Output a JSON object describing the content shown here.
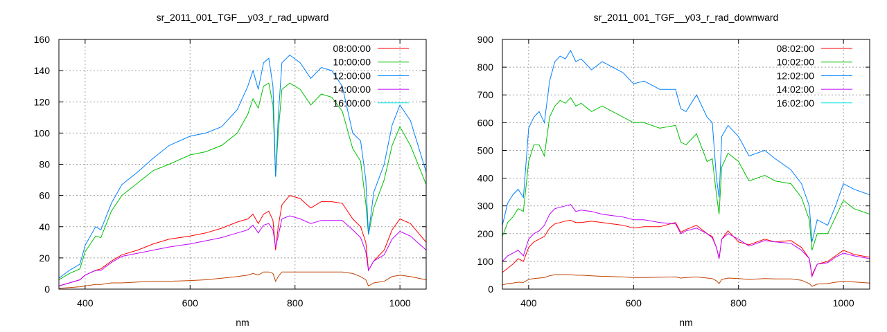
{
  "chart_data": [
    {
      "type": "line",
      "title": "sr_2011_001_TGF__y03_r_rad_upward",
      "xlabel": "nm",
      "ylabel": "",
      "xlim": [
        350,
        1050
      ],
      "ylim": [
        0,
        160
      ],
      "xticks": [
        400,
        600,
        800,
        1000
      ],
      "yticks": [
        0,
        20,
        40,
        60,
        80,
        100,
        120,
        140,
        160
      ],
      "grid": true,
      "legend": "top-right",
      "x": [
        350,
        370,
        390,
        400,
        420,
        430,
        450,
        470,
        500,
        530,
        560,
        600,
        630,
        660,
        690,
        710,
        720,
        730,
        740,
        750,
        758,
        763,
        768,
        775,
        790,
        810,
        830,
        850,
        870,
        890,
        910,
        925,
        935,
        940,
        950,
        970,
        985,
        1000,
        1020,
        1050
      ],
      "series": [
        {
          "name": "08:00:00",
          "color": "#ff0000",
          "legend_color": "#ff0000",
          "values": [
            2,
            4,
            6,
            9,
            12,
            13,
            18,
            22,
            25,
            29,
            32,
            34,
            36,
            39,
            43,
            45,
            48,
            42,
            48,
            50,
            44,
            25,
            40,
            54,
            60,
            58,
            52,
            56,
            56,
            55,
            45,
            40,
            30,
            12,
            18,
            25,
            38,
            45,
            42,
            30
          ]
        },
        {
          "name": "10:00:00",
          "color": "#00c000",
          "legend_color": "#00c000",
          "values": [
            6,
            10,
            13,
            24,
            34,
            33,
            50,
            60,
            68,
            76,
            80,
            86,
            88,
            92,
            100,
            112,
            122,
            116,
            130,
            132,
            118,
            72,
            100,
            128,
            132,
            128,
            118,
            125,
            123,
            114,
            90,
            82,
            55,
            35,
            52,
            70,
            92,
            104,
            92,
            67
          ]
        },
        {
          "name": "12:00:00",
          "color": "#0080ff",
          "legend_color": "#0080ff",
          "values": [
            7,
            12,
            16,
            28,
            40,
            38,
            55,
            67,
            75,
            84,
            92,
            98,
            100,
            104,
            115,
            130,
            140,
            128,
            145,
            148,
            130,
            72,
            110,
            145,
            150,
            145,
            135,
            142,
            140,
            130,
            100,
            95,
            70,
            35,
            62,
            80,
            105,
            118,
            108,
            75
          ]
        },
        {
          "name": "14:00:00",
          "color": "#c000ff",
          "legend_color": "#c000ff",
          "values": [
            2,
            4,
            6,
            9,
            12,
            12,
            17,
            21,
            23,
            25,
            27,
            29,
            31,
            33,
            36,
            38,
            41,
            36,
            41,
            42,
            38,
            27,
            34,
            45,
            47,
            45,
            42,
            44,
            44,
            44,
            38,
            33,
            24,
            12,
            18,
            22,
            32,
            37,
            34,
            25
          ]
        },
        {
          "name": "16:00:00",
          "color": "#c04000",
          "legend_color": "#00e0e0",
          "values": [
            0.5,
            1,
            1.5,
            2,
            3,
            3,
            4,
            4,
            4.5,
            5,
            5,
            5.5,
            6,
            7,
            8,
            9,
            10,
            9,
            11,
            11,
            10,
            5,
            8,
            11,
            11,
            11,
            11,
            11,
            11,
            11,
            10,
            8,
            6,
            2,
            4,
            5,
            8,
            9,
            8,
            6
          ]
        }
      ]
    },
    {
      "type": "line",
      "title": "sr_2011_001_TGF__y03_r_rad_downward",
      "xlabel": "nm",
      "ylabel": "",
      "xlim": [
        350,
        1050
      ],
      "ylim": [
        0,
        900
      ],
      "xticks": [
        400,
        600,
        800,
        1000
      ],
      "yticks": [
        0,
        100,
        200,
        300,
        400,
        500,
        600,
        700,
        800,
        900
      ],
      "grid": true,
      "legend": "top-right",
      "x": [
        350,
        360,
        370,
        380,
        390,
        400,
        410,
        420,
        430,
        440,
        450,
        460,
        470,
        480,
        490,
        500,
        520,
        540,
        560,
        580,
        600,
        620,
        650,
        680,
        690,
        700,
        720,
        740,
        750,
        758,
        763,
        768,
        780,
        800,
        820,
        850,
        870,
        900,
        920,
        935,
        940,
        950,
        970,
        985,
        1000,
        1020,
        1050
      ],
      "series": [
        {
          "name": "08:02:00",
          "color": "#ff0000",
          "legend_color": "#ff0000",
          "values": [
            60,
            75,
            90,
            110,
            100,
            150,
            170,
            180,
            190,
            220,
            235,
            240,
            245,
            248,
            240,
            240,
            245,
            240,
            235,
            230,
            220,
            225,
            225,
            240,
            205,
            215,
            230,
            200,
            190,
            150,
            110,
            180,
            210,
            170,
            160,
            180,
            170,
            175,
            150,
            110,
            50,
            90,
            100,
            120,
            140,
            125,
            115
          ]
        },
        {
          "name": "10:02:00",
          "color": "#00c000",
          "legend_color": "#00c000",
          "values": [
            190,
            240,
            260,
            290,
            280,
            460,
            520,
            520,
            480,
            620,
            660,
            680,
            670,
            690,
            660,
            670,
            640,
            660,
            640,
            620,
            600,
            600,
            580,
            590,
            530,
            520,
            560,
            460,
            470,
            340,
            270,
            440,
            490,
            460,
            390,
            410,
            390,
            380,
            330,
            250,
            140,
            200,
            200,
            260,
            320,
            290,
            270
          ]
        },
        {
          "name": "12:02:00",
          "color": "#0080ff",
          "legend_color": "#0080ff",
          "values": [
            230,
            310,
            340,
            360,
            330,
            580,
            620,
            640,
            600,
            750,
            820,
            840,
            830,
            860,
            820,
            830,
            790,
            820,
            800,
            780,
            740,
            750,
            720,
            720,
            650,
            640,
            700,
            620,
            600,
            400,
            330,
            550,
            590,
            550,
            480,
            500,
            470,
            430,
            380,
            300,
            170,
            250,
            230,
            300,
            380,
            360,
            340
          ]
        },
        {
          "name": "14:02:00",
          "color": "#c000ff",
          "legend_color": "#c000ff",
          "values": [
            100,
            120,
            130,
            140,
            120,
            180,
            200,
            210,
            230,
            270,
            290,
            295,
            300,
            305,
            280,
            285,
            280,
            270,
            265,
            260,
            250,
            250,
            240,
            235,
            200,
            210,
            220,
            200,
            185,
            150,
            110,
            180,
            200,
            180,
            155,
            175,
            170,
            165,
            140,
            110,
            45,
            90,
            95,
            115,
            130,
            120,
            110
          ]
        },
        {
          "name": "16:02:00",
          "color": "#c04000",
          "legend_color": "#00e0e0",
          "values": [
            15,
            20,
            22,
            25,
            24,
            35,
            38,
            40,
            42,
            48,
            52,
            52,
            52,
            52,
            50,
            50,
            48,
            46,
            45,
            44,
            42,
            42,
            43,
            44,
            40,
            42,
            44,
            40,
            38,
            30,
            20,
            35,
            40,
            38,
            35,
            38,
            37,
            37,
            32,
            20,
            10,
            18,
            20,
            25,
            28,
            26,
            22
          ]
        }
      ]
    }
  ]
}
